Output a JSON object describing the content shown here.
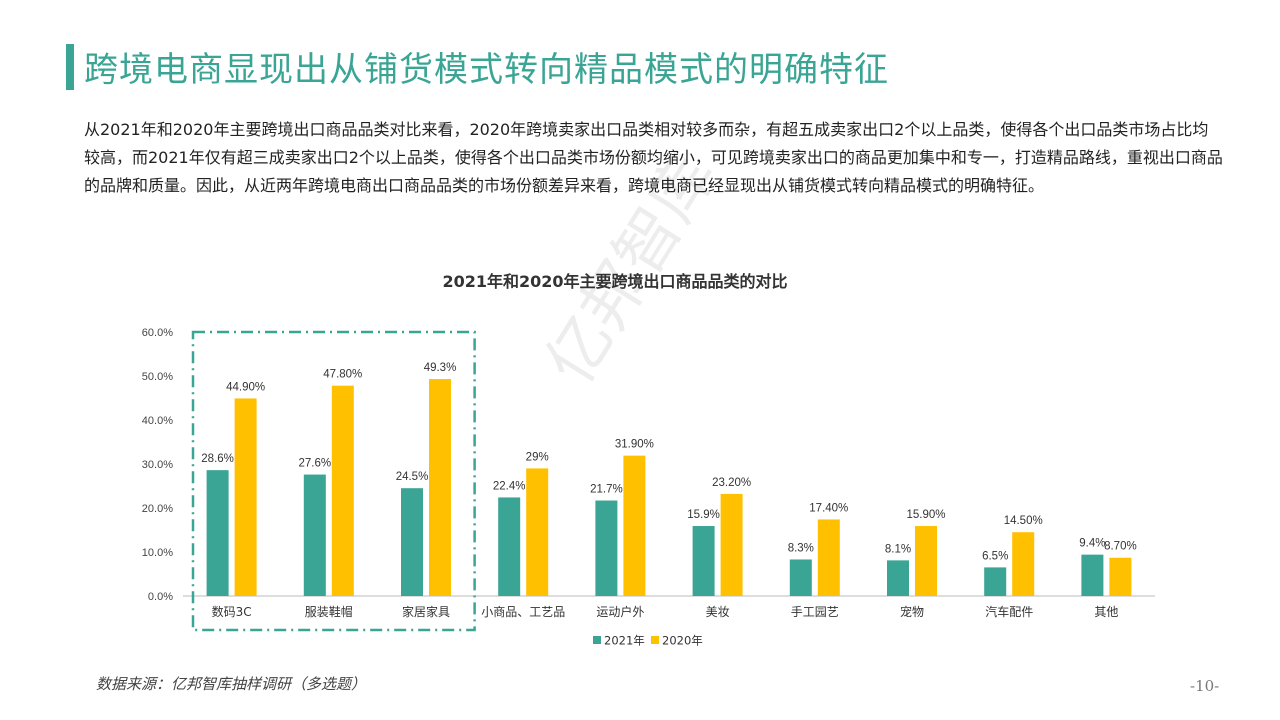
{
  "page": {
    "title": "跨境电商显现出从铺货模式转向精品模式的明确特征",
    "intro": "从2021年和2020年主要跨境出口商品品类对比来看，2020年跨境卖家出口品类相对较多而杂，有超五成卖家出口2个以上品类，使得各个出口品类市场占比均较高，而2021年仅有超三成卖家出口2个以上品类，使得各个出口品类市场份额均缩小，可见跨境卖家出口的商品更加集中和专一，打造精品路线，重视出口商品的品牌和质量。因此，从近两年跨境电商出口商品品类的市场份额差异来看，跨境电商已经显现出从铺货模式转向精品模式的明确特征。",
    "source": "数据来源：亿邦智库抽样调研（多选题）",
    "page_number": "-10-",
    "watermark": "亿邦智库",
    "accent_color": "#3AA594"
  },
  "chart_data": {
    "type": "bar",
    "title": "2021年和2020年主要跨境出口商品品类的对比",
    "categories": [
      "数码3C",
      "服装鞋帽",
      "家居家具",
      "小商品、工艺品",
      "运动户外",
      "美妆",
      "手工园艺",
      "宠物",
      "汽车配件",
      "其他"
    ],
    "series": [
      {
        "name": "2021年",
        "color": "#3AA594",
        "values": [
          28.6,
          27.6,
          24.5,
          22.4,
          21.7,
          15.9,
          8.3,
          8.1,
          6.5,
          9.4
        ],
        "labels": [
          "28.6%",
          "27.6%",
          "24.5%",
          "22.4%",
          "21.7%",
          "15.9%",
          "8.3%",
          "8.1%",
          "6.5%",
          "9.4%"
        ]
      },
      {
        "name": "2020年",
        "color": "#FFC000",
        "values": [
          44.9,
          47.8,
          49.3,
          29,
          31.9,
          23.2,
          17.4,
          15.9,
          14.5,
          8.7
        ],
        "labels": [
          "44.90%",
          "47.80%",
          "49.3%",
          "29%",
          "31.90%",
          "23.20%",
          "17.40%",
          "15.90%",
          "14.50%",
          "8.70%"
        ]
      }
    ],
    "ylim": [
      0,
      60
    ],
    "yticks": [
      "0.0%",
      "10.0%",
      "20.0%",
      "30.0%",
      "40.0%",
      "50.0%",
      "60.0%"
    ],
    "grid": false,
    "legend": "bottom",
    "highlight_categories": [
      "数码3C",
      "服装鞋帽",
      "家居家具"
    ],
    "highlight_color": "#3AA594"
  }
}
